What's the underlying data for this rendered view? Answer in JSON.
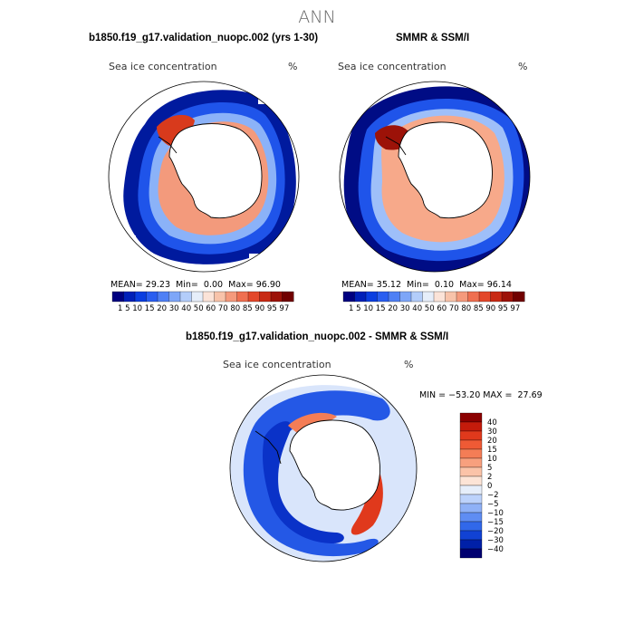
{
  "page": {
    "title": "ANN"
  },
  "panels": {
    "model": {
      "title": "b1850.f19_g17.validation_nuopc.002 (yrs 1-30)",
      "variable": "Sea ice concentration",
      "units": "%",
      "stats": {
        "mean_label": "MEAN=",
        "mean": "29.23",
        "min_label": "Min=",
        "min": "0.00",
        "max_label": "Max=",
        "max": "96.90"
      }
    },
    "obs": {
      "title": "SMMR & SSM/I",
      "variable": "Sea ice concentration",
      "units": "%",
      "stats": {
        "mean_label": "MEAN=",
        "mean": "35.12",
        "min_label": "Min=",
        "min": "0.10",
        "max_label": "Max=",
        "max": "96.14"
      }
    },
    "diff": {
      "title": "b1850.f19_g17.validation_nuopc.002 - SMMR & SSM/I",
      "variable": "Sea ice concentration",
      "units": "%",
      "range_text": "MIN = −53.20 MAX =  27.69"
    }
  },
  "colorbar_abs": {
    "labels": "1  5 10 15 20 30 40 50 60 70 80 85 90 95 97",
    "levels": [
      1,
      5,
      10,
      15,
      20,
      30,
      40,
      50,
      60,
      70,
      80,
      85,
      90,
      95,
      97
    ],
    "colors": [
      "#000080",
      "#0020b8",
      "#0a3ee0",
      "#2a5ef0",
      "#4f80f5",
      "#7ea6f8",
      "#b3cdfa",
      "#e6eefa",
      "#fbe3d8",
      "#f8c3aa",
      "#f59a7c",
      "#ef6f50",
      "#e3482b",
      "#c82a14",
      "#9c1208",
      "#700000"
    ]
  },
  "colorbar_diff": {
    "labels": [
      "40",
      "30",
      "20",
      "15",
      "10",
      "5",
      "2",
      "0",
      "−2",
      "−5",
      "−10",
      "−15",
      "−20",
      "−30",
      "−40"
    ],
    "colors": [
      "#8b0000",
      "#c41b0b",
      "#e0391c",
      "#ef5a35",
      "#f47d56",
      "#f8a07e",
      "#fbc3a8",
      "#fde4d6",
      "#e6eefa",
      "#bcd2fb",
      "#8fb1f7",
      "#5f8df3",
      "#3168ea",
      "#1142d4",
      "#0020a8",
      "#000070"
    ]
  },
  "chart_data": [
    {
      "type": "heatmap",
      "title": "b1850.f19_g17.validation_nuopc.002 (yrs 1-30)",
      "subtitle": "Sea ice concentration (%)",
      "projection": "south polar stereographic",
      "statistics": {
        "mean": 29.23,
        "min": 0.0,
        "max": 96.9
      },
      "levels": [
        1,
        5,
        10,
        15,
        20,
        30,
        40,
        50,
        60,
        70,
        80,
        85,
        90,
        95,
        97
      ]
    },
    {
      "type": "heatmap",
      "title": "SMMR & SSM/I",
      "subtitle": "Sea ice concentration (%)",
      "projection": "south polar stereographic",
      "statistics": {
        "mean": 35.12,
        "min": 0.1,
        "max": 96.14
      },
      "levels": [
        1,
        5,
        10,
        15,
        20,
        30,
        40,
        50,
        60,
        70,
        80,
        85,
        90,
        95,
        97
      ]
    },
    {
      "type": "heatmap",
      "title": "b1850.f19_g17.validation_nuopc.002 - SMMR & SSM/I",
      "subtitle": "Sea ice concentration (%)",
      "projection": "south polar stereographic",
      "statistics": {
        "min": -53.2,
        "max": 27.69
      },
      "levels": [
        -40,
        -30,
        -20,
        -15,
        -10,
        -5,
        -2,
        0,
        2,
        5,
        10,
        15,
        20,
        30,
        40
      ]
    }
  ]
}
